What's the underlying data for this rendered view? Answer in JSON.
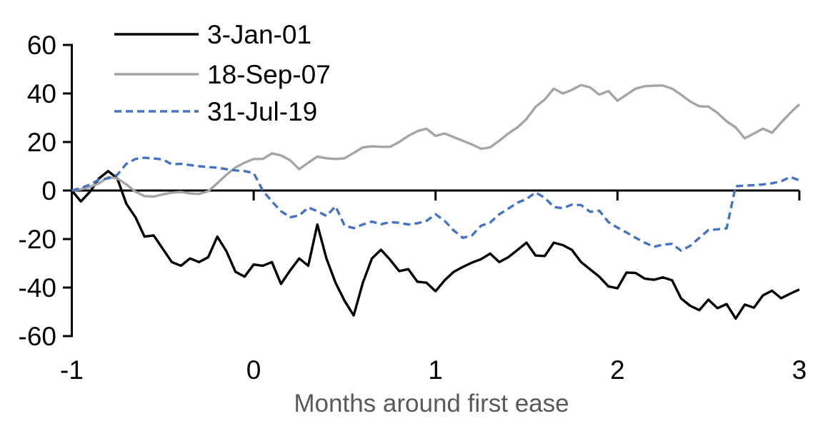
{
  "chart_data": {
    "type": "line",
    "title": "",
    "xlabel": "Months around first ease",
    "ylabel": "",
    "xlim": [
      -1,
      3
    ],
    "ylim": [
      -60,
      60
    ],
    "grid": false,
    "legend_position": "top-left",
    "x_ticks": [
      -1,
      0,
      1,
      2,
      3
    ],
    "y_ticks": [
      60,
      40,
      20,
      0,
      -20,
      -40,
      -60
    ],
    "x": [
      -1.0,
      -0.95,
      -0.9,
      -0.85,
      -0.8,
      -0.75,
      -0.7,
      -0.65,
      -0.6,
      -0.55,
      -0.5,
      -0.45,
      -0.4,
      -0.35,
      -0.3,
      -0.25,
      -0.2,
      -0.15,
      -0.1,
      -0.05,
      0.0,
      0.05,
      0.1,
      0.15,
      0.2,
      0.25,
      0.3,
      0.35,
      0.4,
      0.45,
      0.5,
      0.55,
      0.6,
      0.65,
      0.7,
      0.75,
      0.8,
      0.85,
      0.9,
      0.95,
      1.0,
      1.05,
      1.1,
      1.15,
      1.2,
      1.25,
      1.3,
      1.35,
      1.4,
      1.45,
      1.5,
      1.55,
      1.6,
      1.65,
      1.7,
      1.75,
      1.8,
      1.85,
      1.9,
      1.95,
      2.0,
      2.05,
      2.1,
      2.15,
      2.2,
      2.25,
      2.3,
      2.35,
      2.4,
      2.45,
      2.5,
      2.55,
      2.6,
      2.65,
      2.7,
      2.75,
      2.8,
      2.85,
      2.9,
      2.95,
      3.0
    ],
    "series": [
      {
        "name": "3-Jan-01",
        "color": "#000000",
        "line_style": "solid",
        "values": [
          0,
          -4.5,
          -0.5,
          5,
          8,
          5,
          -5.5,
          -11,
          -19,
          -18.5,
          -24,
          -29.5,
          -31,
          -28,
          -29.5,
          -27.5,
          -19,
          -25,
          -33.5,
          -35.5,
          -30.5,
          -31,
          -29.5,
          -38.5,
          -33,
          -28,
          -31,
          -14,
          -28,
          -38,
          -45.5,
          -51.5,
          -38,
          -28,
          -24.4,
          -28.5,
          -33.2,
          -32.4,
          -37.6,
          -38,
          -41.5,
          -37,
          -33.5,
          -31.5,
          -29.7,
          -28.3,
          -26,
          -29.5,
          -27.5,
          -24.5,
          -21.5,
          -26.8,
          -27,
          -21.5,
          -22.5,
          -24.5,
          -29.5,
          -32.5,
          -35.5,
          -39.5,
          -40.3,
          -33.8,
          -34,
          -36.3,
          -36.8,
          -35.8,
          -37,
          -44.5,
          -47.5,
          -49.3,
          -45,
          -48.5,
          -46.8,
          -52.8,
          -47,
          -48.3,
          -43.2,
          -41.3,
          -44.4,
          -42.5,
          -40.8
        ]
      },
      {
        "name": "18-Sep-07",
        "color": "#A5A5A5",
        "line_style": "solid",
        "values": [
          0,
          0.5,
          1.5,
          3,
          5.5,
          5,
          2.5,
          -0.5,
          -2.3,
          -2.5,
          -1.6,
          -0.9,
          -0.6,
          -1.2,
          -1.4,
          -0.3,
          3,
          6.5,
          9.5,
          11.5,
          13,
          13,
          15.3,
          14.5,
          12.5,
          8.8,
          11.5,
          14,
          13.3,
          13,
          13.3,
          15.5,
          17.8,
          18.2,
          18,
          18,
          20,
          22.5,
          24.5,
          25.5,
          22.5,
          23.5,
          22,
          20.5,
          19,
          17.2,
          17.8,
          20.5,
          23.5,
          26,
          29.5,
          34.5,
          37.5,
          42,
          40,
          41.5,
          43.5,
          42.5,
          39.5,
          41,
          37,
          39.5,
          42,
          43,
          43.2,
          43.3,
          42,
          39.5,
          36.7,
          34.7,
          34.6,
          32,
          28.5,
          26,
          21.5,
          23.5,
          25.5,
          23.8,
          28,
          32,
          35.5
        ]
      },
      {
        "name": "31-Jul-19",
        "color": "#4472C4",
        "line_style": "dashed",
        "values": [
          0,
          1,
          2.5,
          4.5,
          5,
          6.5,
          11,
          13,
          13.5,
          13.2,
          12.8,
          10.8,
          11,
          10.5,
          10,
          9.7,
          9.4,
          8.8,
          8.3,
          8,
          7.2,
          0,
          -4.5,
          -8.5,
          -11,
          -10.3,
          -7,
          -8.5,
          -10.5,
          -6.5,
          -14.5,
          -15.5,
          -14,
          -12.8,
          -13.9,
          -13,
          -13.3,
          -14,
          -13.5,
          -12.5,
          -9.8,
          -12.5,
          -16.5,
          -19.5,
          -18.5,
          -14.5,
          -13.2,
          -9.8,
          -7.5,
          -5,
          -3.5,
          -0.8,
          -3,
          -6.8,
          -7.3,
          -5.8,
          -6,
          -8.8,
          -8.3,
          -13,
          -15.3,
          -17.3,
          -19.5,
          -21.5,
          -23.2,
          -22.3,
          -22,
          -24.8,
          -22.8,
          -19.5,
          -16.3,
          -16,
          -15.6,
          1.8,
          2,
          2.2,
          2.5,
          3,
          3.8,
          5.6,
          4.2
        ]
      }
    ]
  },
  "colors": {
    "axis": "#000000",
    "axis_title": "#595959",
    "background": "#FFFFFF"
  }
}
